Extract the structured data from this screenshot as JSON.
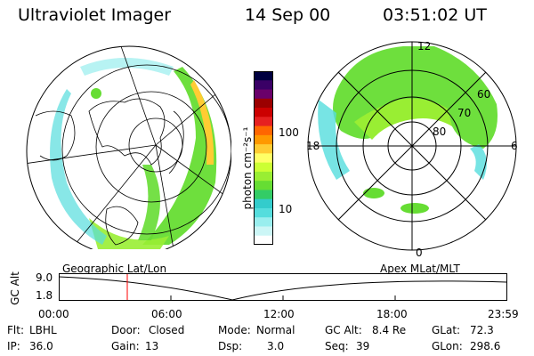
{
  "header": {
    "title": "Ultraviolet Imager",
    "date": "14 Sep 00",
    "time": "03:51:02 UT"
  },
  "colorbar": {
    "unit_label": "photon cm⁻²s⁻¹",
    "ticks": [
      "100",
      "10"
    ],
    "colors": [
      "#000040",
      "#3a0066",
      "#6a006a",
      "#9b0000",
      "#cc0000",
      "#e62020",
      "#ff6600",
      "#ff9900",
      "#ffcc33",
      "#ffff66",
      "#ccff33",
      "#99ee33",
      "#66dd33",
      "#33cc66",
      "#33cccc",
      "#55dddd",
      "#99eeee",
      "#ccf6f6",
      "#ffffff"
    ]
  },
  "polar_plot": {
    "mlat_labels": [
      "60",
      "70",
      "80"
    ],
    "mlt_labels": {
      "top": "12",
      "bottom": "0",
      "left": "18",
      "right": "6"
    }
  },
  "timeline": {
    "left_label": "Geographic Lat/Lon",
    "right_label": "Apex  MLat/MLT",
    "axis_title": "GC Alt",
    "y_ticks": [
      "9.0",
      "1.8"
    ],
    "x_ticks": [
      "00:00",
      "06:00",
      "12:00",
      "18:00",
      "23:59"
    ],
    "marker_color": "#ff0000"
  },
  "footer": {
    "row1": [
      {
        "label": "Flt:",
        "value": "LBHL"
      },
      {
        "label": "Door:",
        "value": "Closed"
      },
      {
        "label": "Mode:",
        "value": "Normal"
      },
      {
        "label": "GC Alt:",
        "value": "8.4 Re"
      },
      {
        "label": "GLat:",
        "value": "72.3"
      }
    ],
    "row2": [
      {
        "label": "IP:",
        "value": "36.0"
      },
      {
        "label": "Gain:",
        "value": "13"
      },
      {
        "label": "Dsp:",
        "value": "3.0"
      },
      {
        "label": "Seq:",
        "value": "39"
      },
      {
        "label": "GLon:",
        "value": "298.6"
      }
    ]
  }
}
